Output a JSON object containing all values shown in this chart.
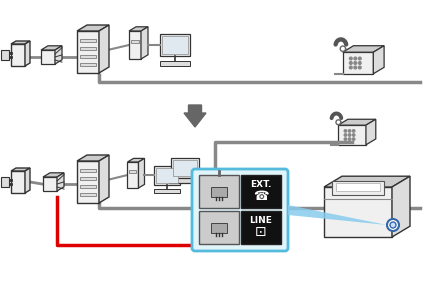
{
  "bg_color": "#ffffff",
  "line_gray": "#888888",
  "line_red": "#dd0000",
  "line_dark": "#333333",
  "fill_light": "#f0f0f0",
  "fill_mid": "#dddddd",
  "fill_dark": "#cccccc",
  "fill_screen": "#e0e8f0",
  "arrow_gray": "#666666",
  "blue_box_edge": "#55bbdd",
  "blue_box_fill": "#e0f4fa",
  "black_fill": "#111111",
  "white": "#ffffff",
  "blue_tri": "#88ccee"
}
